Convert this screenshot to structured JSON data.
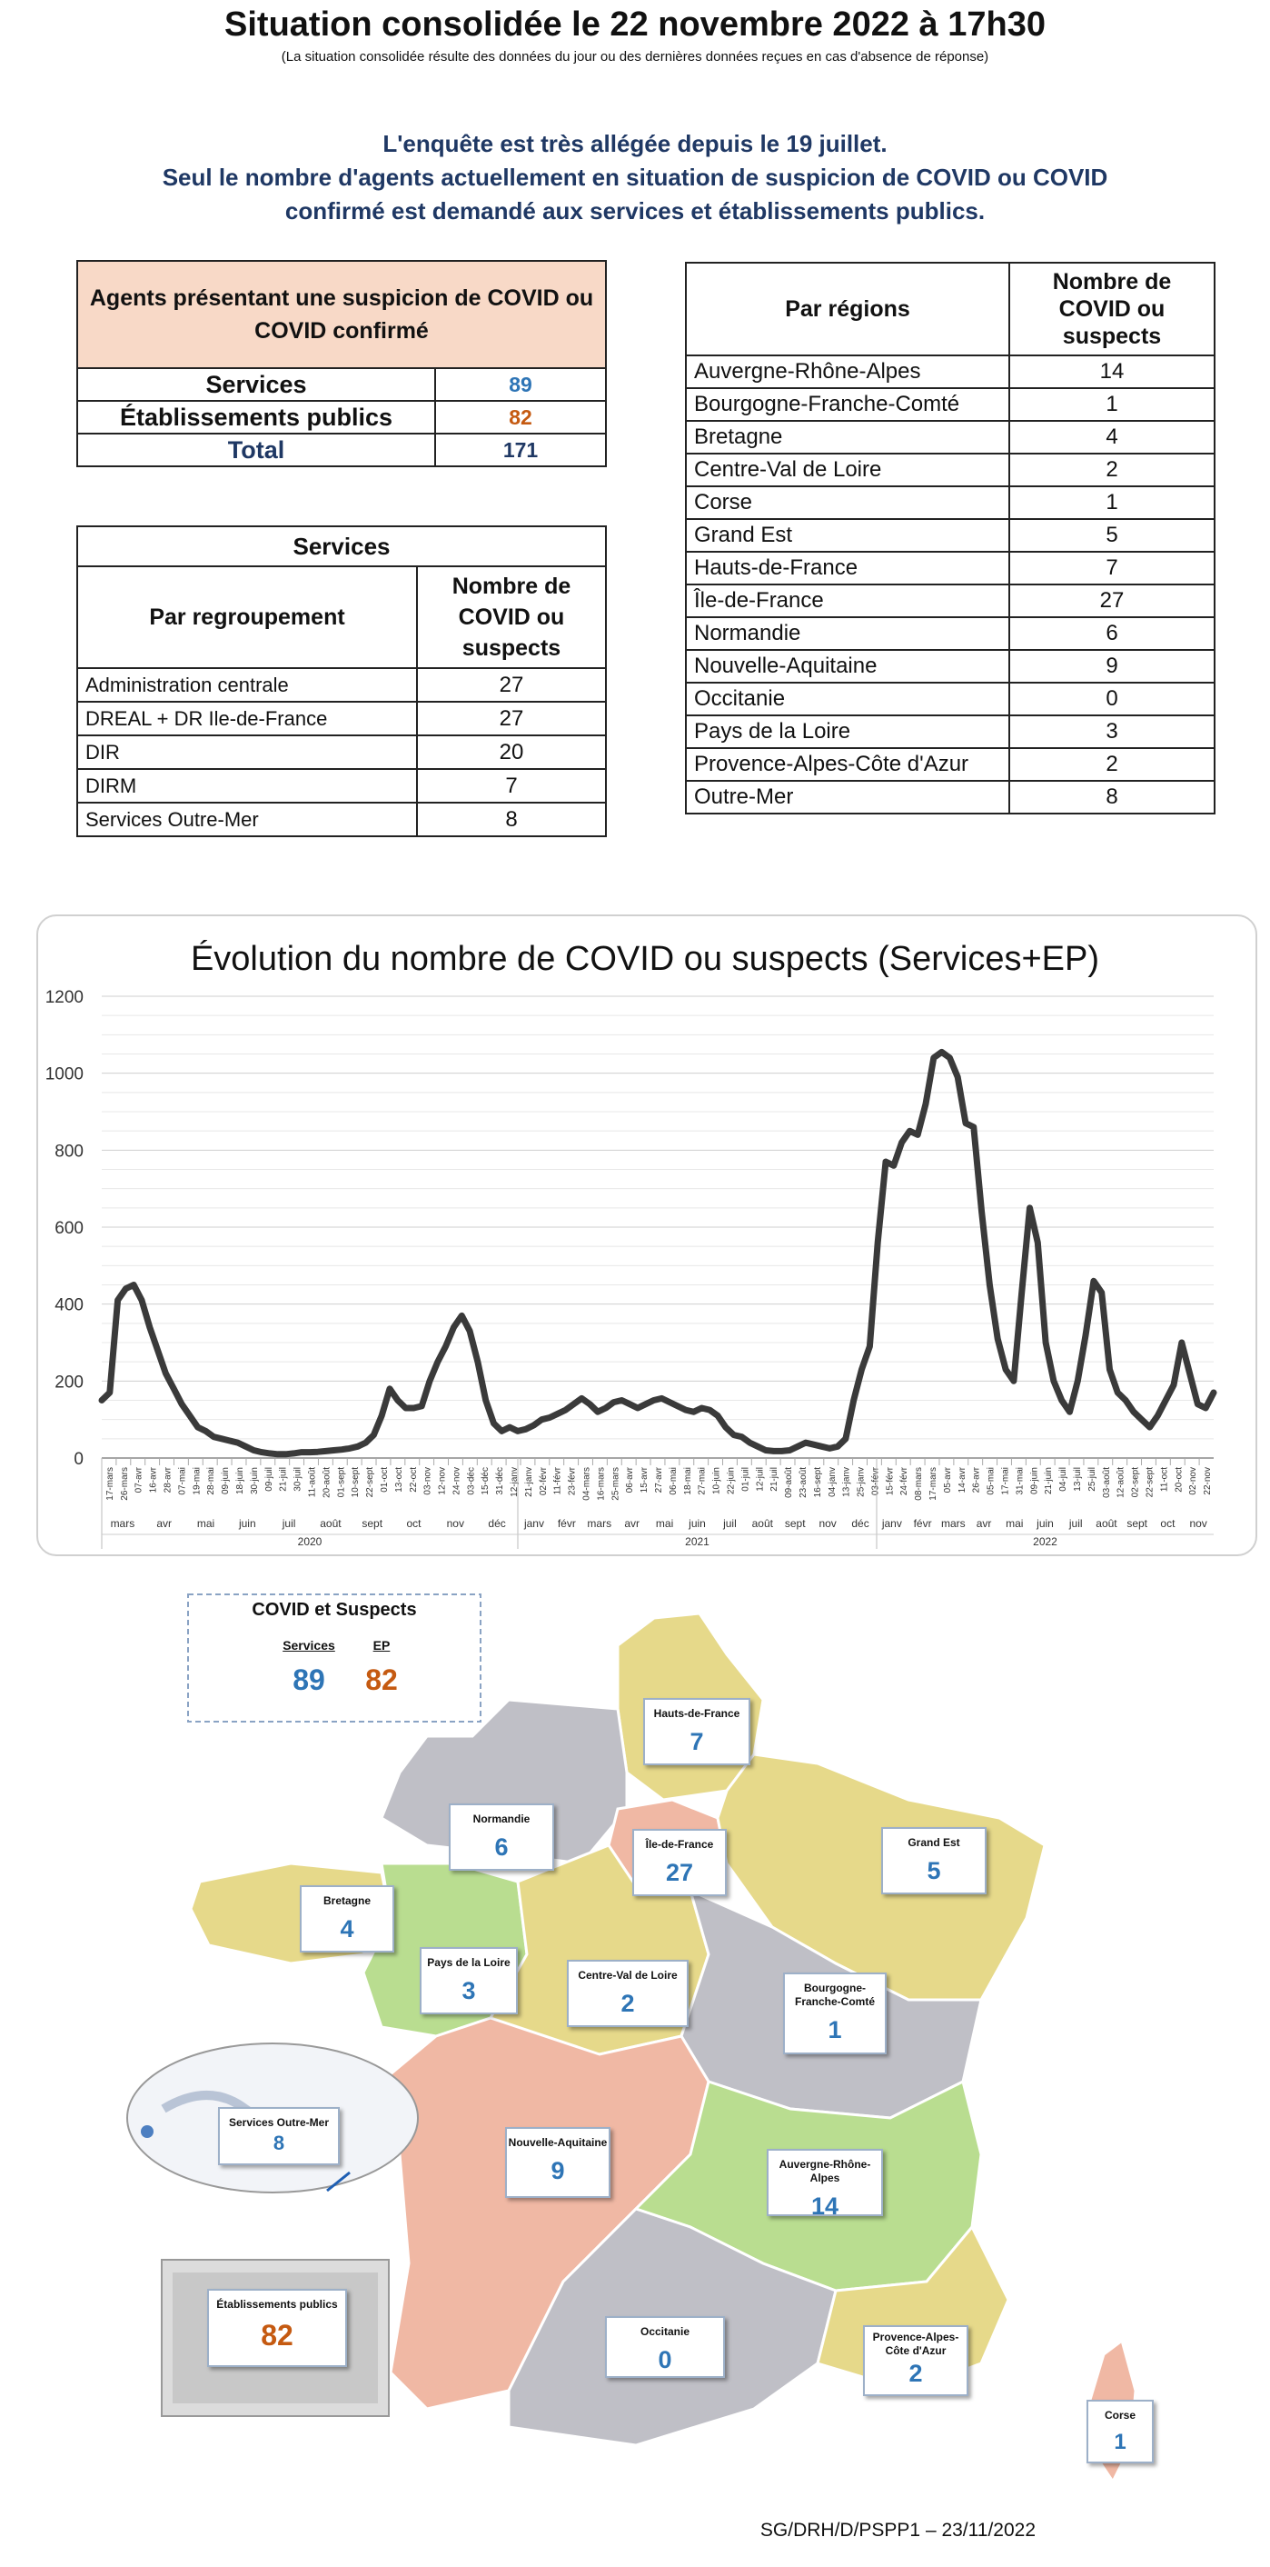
{
  "header": {
    "title": "Situation consolidée le 22 novembre 2022 à 17h30",
    "subtitle": "(La situation consolidée résulte des données du jour ou des dernières données reçues en cas d'absence de réponse)"
  },
  "intro": {
    "line1": "L'enquête est très allégée depuis le 19 juillet.",
    "line2": "Seul le nombre d'agents actuellement en situation de suspicion de COVID ou COVID",
    "line3": "confirmé est demandé aux services et établissements publics."
  },
  "agents_table": {
    "header": "Agents présentant une suspicion de COVID ou COVID confirmé",
    "rows": [
      {
        "label": "Services",
        "value": "89"
      },
      {
        "label": "Établissements publics",
        "value": "82"
      },
      {
        "label": "Total",
        "value": "171"
      }
    ],
    "colors": {
      "services": "#2e75b6",
      "ep": "#c55a11",
      "total": "#1f3864"
    }
  },
  "services_table": {
    "caption": "Services",
    "col1": "Par regroupement",
    "col2": "Nombre de COVID ou suspects",
    "rows": [
      {
        "label": "Administration centrale",
        "value": "27"
      },
      {
        "label": "DREAL + DR Ile-de-France",
        "value": "27"
      },
      {
        "label": "DIR",
        "value": "20"
      },
      {
        "label": "DIRM",
        "value": "7"
      },
      {
        "label": "Services Outre-Mer",
        "value": "8"
      }
    ]
  },
  "regions_table": {
    "col1": "Par régions",
    "col2": "Nombre de COVID ou suspects",
    "rows": [
      {
        "label": "Auvergne-Rhône-Alpes",
        "value": "14"
      },
      {
        "label": "Bourgogne-Franche-Comté",
        "value": "1"
      },
      {
        "label": "Bretagne",
        "value": "4"
      },
      {
        "label": "Centre-Val de Loire",
        "value": "2"
      },
      {
        "label": "Corse",
        "value": "1"
      },
      {
        "label": "Grand Est",
        "value": "5"
      },
      {
        "label": "Hauts-de-France",
        "value": "7"
      },
      {
        "label": "Île-de-France",
        "value": "27"
      },
      {
        "label": "Normandie",
        "value": "6"
      },
      {
        "label": "Nouvelle-Aquitaine",
        "value": "9"
      },
      {
        "label": "Occitanie",
        "value": "0"
      },
      {
        "label": "Pays de la Loire",
        "value": "3"
      },
      {
        "label": "Provence-Alpes-Côte d'Azur",
        "value": "2"
      },
      {
        "label": "Outre-Mer",
        "value": "8"
      }
    ]
  },
  "chart_data": {
    "type": "line",
    "title": "Évolution du nombre de COVID ou suspects (Services+EP)",
    "ylim": [
      0,
      1200
    ],
    "yticks": [
      0,
      200,
      400,
      600,
      800,
      1000,
      1200
    ],
    "grid": true,
    "line_color": "#3a3a3a",
    "weeks": 140,
    "week_labels": [
      "17-mars",
      "26-mars",
      "07-avr",
      "16-avr",
      "28-avr",
      "07-mai",
      "19-mai",
      "28-mai",
      "09-juin",
      "18-juin",
      "30-juin",
      "09-juil",
      "21-juil",
      "30-juil",
      "11-août",
      "20-août",
      "01-sept",
      "10-sept",
      "22-sept",
      "01-oct",
      "13-oct",
      "22-oct",
      "03-nov",
      "12-nov",
      "24-nov",
      "03-déc",
      "15-déc",
      "31-déc",
      "12-janv",
      "21-janv",
      "02-févr",
      "11-févr",
      "23-févr",
      "04-mars",
      "16-mars",
      "25-mars",
      "06-avr",
      "15-avr",
      "27-avr",
      "06-mai",
      "18-mai",
      "27-mai",
      "10-juin",
      "22-juin",
      "01-juil",
      "12-juil",
      "21-juil",
      "09-août",
      "23-août",
      "16-sept",
      "04-janv",
      "13-janv",
      "25-janv",
      "03-févr",
      "15-févr",
      "24-févr",
      "08-mars",
      "17-mars",
      "05-avr",
      "14-avr",
      "26-avr",
      "05-mai",
      "17-mai",
      "31-mai",
      "09-juin",
      "21-juin",
      "04-juil",
      "13-juil",
      "25-juil",
      "03-août",
      "12-août",
      "02-sept",
      "22-sept",
      "11-oct",
      "20-oct",
      "02-nov",
      "22-nov"
    ],
    "months_2020": [
      "mars",
      "avr",
      "mai",
      "juin",
      "juil",
      "août",
      "sept",
      "oct",
      "nov",
      "déc"
    ],
    "months_2021": [
      "janv",
      "févr",
      "mars",
      "avr",
      "mai",
      "juin",
      "juil",
      "août",
      "sept",
      "nov",
      "déc"
    ],
    "months_2022": [
      "janv",
      "févr",
      "mars",
      "avr",
      "mai",
      "juin",
      "juil",
      "août",
      "sept",
      "oct",
      "nov"
    ],
    "years": [
      "2020",
      "2021",
      "2022"
    ],
    "points": [
      [
        0,
        150
      ],
      [
        1,
        170
      ],
      [
        2,
        410
      ],
      [
        3,
        440
      ],
      [
        4,
        450
      ],
      [
        5,
        410
      ],
      [
        6,
        340
      ],
      [
        7,
        280
      ],
      [
        8,
        220
      ],
      [
        9,
        180
      ],
      [
        10,
        140
      ],
      [
        11,
        110
      ],
      [
        12,
        80
      ],
      [
        13,
        70
      ],
      [
        14,
        55
      ],
      [
        15,
        50
      ],
      [
        16,
        45
      ],
      [
        17,
        40
      ],
      [
        18,
        30
      ],
      [
        19,
        20
      ],
      [
        20,
        15
      ],
      [
        21,
        12
      ],
      [
        22,
        10
      ],
      [
        23,
        10
      ],
      [
        24,
        12
      ],
      [
        25,
        15
      ],
      [
        26,
        15
      ],
      [
        27,
        16
      ],
      [
        28,
        18
      ],
      [
        29,
        20
      ],
      [
        30,
        22
      ],
      [
        31,
        25
      ],
      [
        32,
        30
      ],
      [
        33,
        40
      ],
      [
        34,
        60
      ],
      [
        35,
        110
      ],
      [
        36,
        180
      ],
      [
        37,
        150
      ],
      [
        38,
        130
      ],
      [
        39,
        130
      ],
      [
        40,
        135
      ],
      [
        41,
        200
      ],
      [
        42,
        250
      ],
      [
        43,
        290
      ],
      [
        44,
        340
      ],
      [
        45,
        370
      ],
      [
        46,
        330
      ],
      [
        47,
        250
      ],
      [
        48,
        150
      ],
      [
        49,
        90
      ],
      [
        50,
        70
      ],
      [
        51,
        80
      ],
      [
        52,
        70
      ],
      [
        53,
        75
      ],
      [
        54,
        85
      ],
      [
        55,
        100
      ],
      [
        56,
        105
      ],
      [
        57,
        115
      ],
      [
        58,
        125
      ],
      [
        59,
        140
      ],
      [
        60,
        155
      ],
      [
        61,
        140
      ],
      [
        62,
        120
      ],
      [
        63,
        130
      ],
      [
        64,
        145
      ],
      [
        65,
        150
      ],
      [
        66,
        140
      ],
      [
        67,
        130
      ],
      [
        68,
        140
      ],
      [
        69,
        150
      ],
      [
        70,
        155
      ],
      [
        71,
        145
      ],
      [
        72,
        135
      ],
      [
        73,
        125
      ],
      [
        74,
        120
      ],
      [
        75,
        130
      ],
      [
        76,
        125
      ],
      [
        77,
        110
      ],
      [
        78,
        80
      ],
      [
        79,
        60
      ],
      [
        80,
        55
      ],
      [
        81,
        40
      ],
      [
        82,
        30
      ],
      [
        83,
        20
      ],
      [
        84,
        18
      ],
      [
        85,
        18
      ],
      [
        86,
        20
      ],
      [
        87,
        30
      ],
      [
        88,
        40
      ],
      [
        89,
        35
      ],
      [
        90,
        30
      ],
      [
        91,
        25
      ],
      [
        92,
        30
      ],
      [
        93,
        50
      ],
      [
        94,
        150
      ],
      [
        95,
        230
      ],
      [
        96,
        290
      ],
      [
        97,
        560
      ],
      [
        98,
        770
      ],
      [
        99,
        760
      ],
      [
        100,
        820
      ],
      [
        101,
        850
      ],
      [
        102,
        840
      ],
      [
        103,
        920
      ],
      [
        104,
        1040
      ],
      [
        105,
        1055
      ],
      [
        106,
        1040
      ],
      [
        107,
        990
      ],
      [
        108,
        870
      ],
      [
        109,
        860
      ],
      [
        110,
        640
      ],
      [
        111,
        450
      ],
      [
        112,
        310
      ],
      [
        113,
        230
      ],
      [
        114,
        200
      ],
      [
        115,
        430
      ],
      [
        116,
        650
      ],
      [
        117,
        560
      ],
      [
        118,
        300
      ],
      [
        119,
        200
      ],
      [
        120,
        150
      ],
      [
        121,
        120
      ],
      [
        122,
        200
      ],
      [
        123,
        320
      ],
      [
        124,
        460
      ],
      [
        125,
        430
      ],
      [
        126,
        230
      ],
      [
        127,
        170
      ],
      [
        128,
        150
      ],
      [
        129,
        120
      ],
      [
        130,
        100
      ],
      [
        131,
        80
      ],
      [
        132,
        110
      ],
      [
        133,
        150
      ],
      [
        134,
        190
      ],
      [
        135,
        300
      ],
      [
        136,
        220
      ],
      [
        137,
        140
      ],
      [
        138,
        130
      ],
      [
        139,
        170
      ]
    ]
  },
  "map": {
    "legend_title": "COVID et Suspects",
    "legend_services_label": "Services",
    "legend_ep_label": "EP",
    "legend_services_value": "89",
    "legend_ep_value": "82",
    "colors": {
      "gray": "#bfbfc6",
      "yellow": "#e6d98a",
      "green": "#b9dd90",
      "pink": "#f0b8a4"
    },
    "cards": [
      {
        "name": "Hauts-de-France",
        "value": "7"
      },
      {
        "name": "Normandie",
        "value": "6"
      },
      {
        "name": "Île-de-France",
        "value": "27"
      },
      {
        "name": "Grand Est",
        "value": "5"
      },
      {
        "name": "Bretagne",
        "value": "4"
      },
      {
        "name": "Pays de la Loire",
        "value": "3"
      },
      {
        "name": "Centre-Val de Loire",
        "value": "2"
      },
      {
        "name": "Bourgogne-Franche-Comté",
        "value": "1"
      },
      {
        "name": "Services Outre-Mer",
        "value": "8"
      },
      {
        "name": "Nouvelle-Aquitaine",
        "value": "9"
      },
      {
        "name": "Auvergne-Rhône-Alpes",
        "value": "14"
      },
      {
        "name": "Établissements publics",
        "value": "82"
      },
      {
        "name": "Occitanie",
        "value": "0"
      },
      {
        "name": "Provence-Alpes-Côte d'Azur",
        "value": "2"
      },
      {
        "name": "Corse",
        "value": "1"
      }
    ]
  },
  "footer": {
    "text": "SG/DRH/D/PSPP1 – 23/11/2022"
  }
}
